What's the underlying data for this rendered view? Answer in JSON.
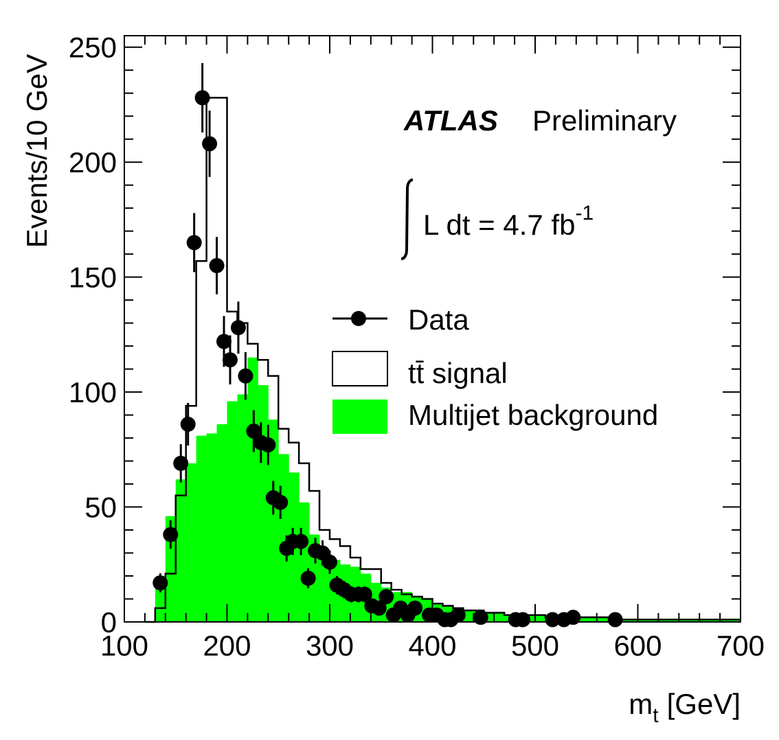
{
  "chart_data": {
    "type": "histogram",
    "title": "",
    "xlabel": "m",
    "xlabel_subscript": "t",
    "xlabel_unit": "[GeV]",
    "ylabel": "Events/10 GeV",
    "xlim": [
      100,
      700
    ],
    "ylim": [
      0,
      255
    ],
    "x_ticks": [
      100,
      200,
      300,
      400,
      500,
      600,
      700
    ],
    "y_ticks": [
      0,
      50,
      100,
      150,
      200,
      250
    ],
    "bin_width": 10,
    "series": [
      {
        "name": "Multijet background",
        "kind": "filled-histogram",
        "color": "#00ff00",
        "bins_low_edges": [
          130,
          140,
          150,
          160,
          170,
          180,
          190,
          200,
          210,
          220,
          230,
          240,
          250,
          260,
          270,
          280,
          290,
          300,
          310,
          320,
          330,
          340,
          350,
          360,
          370,
          380,
          390,
          400,
          410,
          420,
          430,
          440,
          450,
          460,
          470,
          480,
          490,
          500,
          510,
          520,
          530,
          540,
          550,
          560,
          570,
          580,
          590,
          600,
          610,
          620,
          630,
          640,
          650,
          660,
          670,
          680,
          690
        ],
        "values": [
          16,
          46,
          62,
          69,
          81,
          82,
          86,
          96,
          99,
          115,
          103,
          88,
          73,
          65,
          52,
          38,
          30,
          27,
          25,
          24,
          21,
          17,
          15,
          13,
          13,
          11,
          10,
          8,
          7,
          6,
          5,
          5,
          4,
          4,
          3,
          3,
          3,
          3,
          2,
          2,
          2,
          2,
          2,
          2,
          2,
          1,
          1,
          1,
          1,
          1,
          1,
          1,
          1,
          1,
          1,
          1,
          1
        ]
      },
      {
        "name": "tt̄ signal",
        "kind": "stacked-outline",
        "color": "#000000",
        "bins_low_edges": [
          120,
          130,
          140,
          150,
          160,
          170,
          180,
          190,
          200,
          210,
          220,
          230,
          240,
          250,
          260,
          270,
          280,
          290,
          300,
          310,
          320,
          330,
          340,
          350,
          360,
          370,
          380,
          390,
          400,
          410,
          420,
          430,
          440,
          450,
          460,
          470,
          480,
          490,
          500,
          510,
          520,
          530,
          540,
          550,
          560,
          570,
          580,
          590,
          600,
          610,
          620,
          630,
          640,
          650,
          660,
          670,
          680,
          690
        ],
        "values": [
          0,
          6,
          21,
          55,
          94,
          157,
          228,
          228,
          135,
          130,
          121,
          114,
          107,
          84,
          78,
          69,
          57,
          40,
          36,
          33,
          28,
          23,
          23,
          17,
          14,
          12,
          11,
          10,
          8,
          7,
          6,
          5,
          5,
          4,
          4,
          3,
          3,
          3,
          3,
          2,
          2,
          2,
          2,
          2,
          2,
          2,
          1,
          1,
          1,
          1,
          1,
          1,
          1,
          1,
          1,
          1,
          1,
          1
        ]
      },
      {
        "name": "Data",
        "kind": "points-with-errors",
        "color": "#000000",
        "points": [
          {
            "x": 135,
            "y": 17
          },
          {
            "x": 145,
            "y": 38
          },
          {
            "x": 155,
            "y": 69
          },
          {
            "x": 162,
            "y": 86
          },
          {
            "x": 168,
            "y": 165
          },
          {
            "x": 176,
            "y": 228
          },
          {
            "x": 183,
            "y": 208
          },
          {
            "x": 190,
            "y": 155
          },
          {
            "x": 197,
            "y": 122
          },
          {
            "x": 203,
            "y": 114
          },
          {
            "x": 211,
            "y": 128
          },
          {
            "x": 218,
            "y": 107
          },
          {
            "x": 226,
            "y": 83
          },
          {
            "x": 233,
            "y": 78
          },
          {
            "x": 240,
            "y": 77
          },
          {
            "x": 245,
            "y": 54
          },
          {
            "x": 252,
            "y": 52
          },
          {
            "x": 258,
            "y": 32
          },
          {
            "x": 264,
            "y": 35
          },
          {
            "x": 272,
            "y": 35
          },
          {
            "x": 279,
            "y": 19
          },
          {
            "x": 286,
            "y": 31
          },
          {
            "x": 293,
            "y": 30
          },
          {
            "x": 300,
            "y": 26
          },
          {
            "x": 307,
            "y": 16
          },
          {
            "x": 314,
            "y": 14
          },
          {
            "x": 321,
            "y": 12
          },
          {
            "x": 328,
            "y": 12
          },
          {
            "x": 334,
            "y": 12
          },
          {
            "x": 341,
            "y": 7
          },
          {
            "x": 348,
            "y": 6
          },
          {
            "x": 355,
            "y": 11
          },
          {
            "x": 362,
            "y": 3
          },
          {
            "x": 369,
            "y": 6
          },
          {
            "x": 376,
            "y": 3
          },
          {
            "x": 383,
            "y": 6
          },
          {
            "x": 397,
            "y": 3
          },
          {
            "x": 404,
            "y": 3
          },
          {
            "x": 412,
            "y": 1
          },
          {
            "x": 418,
            "y": 1
          },
          {
            "x": 425,
            "y": 3
          },
          {
            "x": 447,
            "y": 2
          },
          {
            "x": 481,
            "y": 1
          },
          {
            "x": 488,
            "y": 1
          },
          {
            "x": 517,
            "y": 1
          },
          {
            "x": 528,
            "y": 1
          },
          {
            "x": 537,
            "y": 2
          },
          {
            "x": 578,
            "y": 1
          }
        ]
      }
    ],
    "legend": {
      "placement": "right",
      "entries": [
        {
          "label": "Data",
          "style": "marker"
        },
        {
          "label": "tt̄ signal",
          "style": "outline-box"
        },
        {
          "label": "Multijet background",
          "style": "filled-box",
          "color": "#00ff00"
        }
      ]
    },
    "annotations": {
      "experiment": "ATLAS",
      "status": "Preliminary",
      "luminosity_prefix": "L dt = 4.7 fb",
      "luminosity_exponent": "-1"
    }
  }
}
